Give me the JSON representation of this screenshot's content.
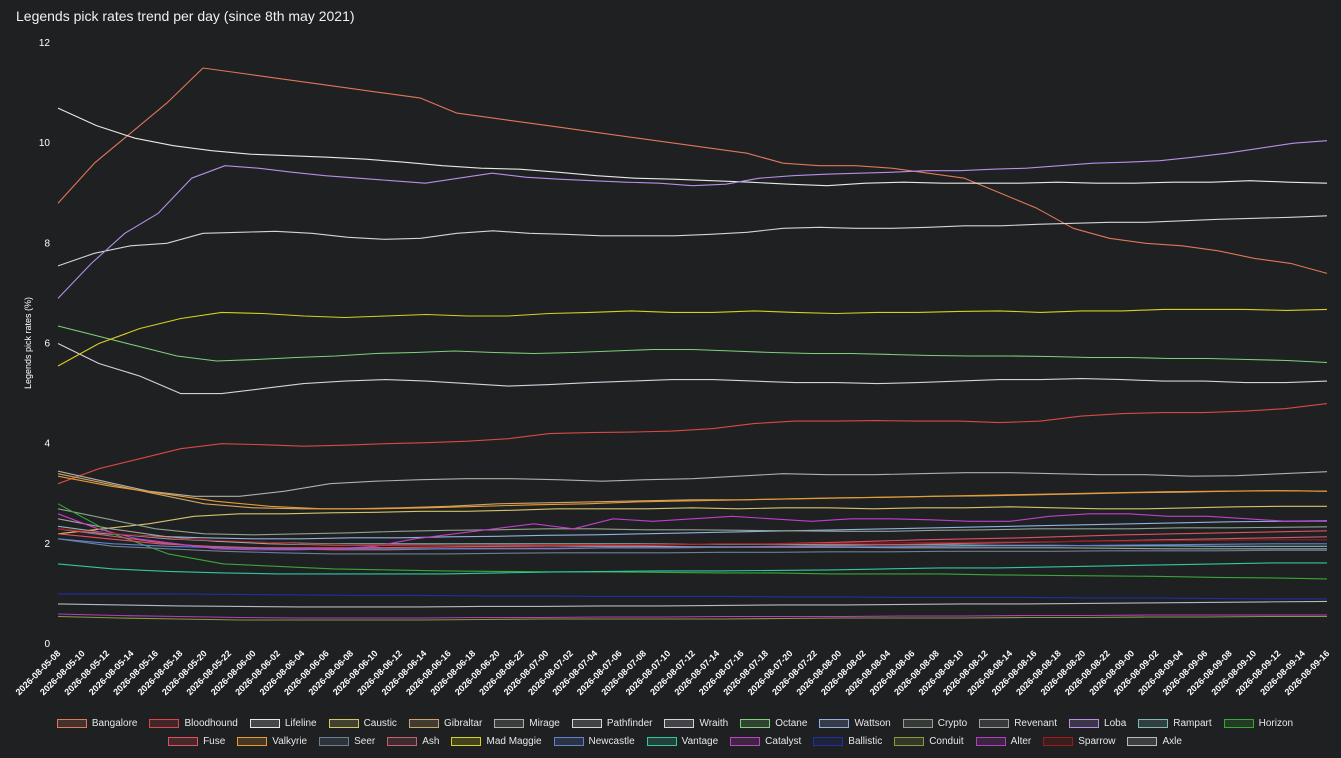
{
  "chart_data": {
    "type": "line",
    "title": "Legends pick rates trend per day (since 8th may 2021)",
    "ylabel": "Legends pick rates (%)",
    "xlabel": "",
    "ylim": [
      0,
      12
    ],
    "yticks": [
      0,
      2,
      4,
      6,
      8,
      10,
      12
    ],
    "grid": false,
    "legend_position": "bottom",
    "x_ticks": [
      "2026-08-05-08",
      "2026-08-05-10",
      "2026-08-05-12",
      "2026-08-05-14",
      "2026-08-05-16",
      "2026-08-05-18",
      "2026-08-05-20",
      "2026-08-05-22",
      "2026-08-06-00",
      "2026-08-06-02",
      "2026-08-06-04",
      "2026-08-06-06",
      "2026-08-06-08",
      "2026-08-06-10",
      "2026-08-06-12",
      "2026-08-06-14",
      "2026-08-06-16",
      "2026-08-06-18",
      "2026-08-06-20",
      "2026-08-06-22",
      "2026-08-07-00",
      "2026-08-07-02",
      "2026-08-07-04",
      "2026-08-07-06",
      "2026-08-07-08",
      "2026-08-07-10",
      "2026-08-07-12",
      "2026-08-07-14",
      "2026-08-07-16",
      "2026-08-07-18",
      "2026-08-07-20",
      "2026-08-07-22",
      "2026-08-08-00",
      "2026-08-08-02",
      "2026-08-08-04",
      "2026-08-08-06",
      "2026-08-08-08",
      "2026-08-08-10",
      "2026-08-08-12",
      "2026-08-08-14",
      "2026-08-08-16",
      "2026-08-08-18",
      "2026-08-08-20",
      "2026-08-08-22",
      "2026-08-09-00",
      "2026-08-09-02",
      "2026-08-09-04",
      "2026-08-09-06",
      "2026-08-09-08",
      "2026-08-09-10",
      "2026-08-09-12",
      "2026-08-09-14",
      "2026-08-09-16"
    ],
    "series": [
      {
        "name": "Bangalore",
        "color": "#e0765a",
        "values": [
          8.8,
          9.6,
          10.2,
          10.8,
          11.5,
          11.4,
          11.3,
          11.2,
          11.1,
          11.0,
          10.9,
          10.6,
          10.5,
          10.4,
          10.3,
          10.2,
          10.1,
          10.0,
          9.9,
          9.8,
          9.6,
          9.55,
          9.55,
          9.5,
          9.4,
          9.3,
          9.0,
          8.7,
          8.3,
          8.1,
          8.0,
          7.95,
          7.85,
          7.7,
          7.6,
          7.4
        ]
      },
      {
        "name": "Bloodhound",
        "color": "#d94848",
        "values": [
          3.2,
          3.5,
          3.7,
          3.9,
          4.0,
          3.98,
          3.95,
          3.97,
          4.0,
          4.02,
          4.05,
          4.1,
          4.2,
          4.22,
          4.23,
          4.25,
          4.3,
          4.4,
          4.45,
          4.45,
          4.46,
          4.45,
          4.45,
          4.42,
          4.45,
          4.55,
          4.6,
          4.62,
          4.62,
          4.65,
          4.7,
          4.8
        ]
      },
      {
        "name": "Lifeline",
        "color": "#e8e8e8",
        "values": [
          10.7,
          10.35,
          10.1,
          9.95,
          9.85,
          9.78,
          9.75,
          9.72,
          9.68,
          9.62,
          9.55,
          9.5,
          9.48,
          9.42,
          9.35,
          9.3,
          9.28,
          9.25,
          9.22,
          9.18,
          9.15,
          9.2,
          9.22,
          9.2,
          9.2,
          9.2,
          9.22,
          9.2,
          9.2,
          9.22,
          9.22,
          9.25,
          9.22,
          9.2
        ]
      },
      {
        "name": "Caustic",
        "color": "#d4c36a",
        "values": [
          2.2,
          2.3,
          2.4,
          2.55,
          2.6,
          2.6,
          2.62,
          2.63,
          2.65,
          2.65,
          2.67,
          2.7,
          2.7,
          2.7,
          2.72,
          2.7,
          2.72,
          2.72,
          2.7,
          2.72,
          2.72,
          2.74,
          2.72,
          2.7,
          2.7,
          2.72,
          2.74,
          2.75,
          2.75
        ]
      },
      {
        "name": "Gibraltar",
        "color": "#c8a56a",
        "values": [
          3.4,
          3.2,
          3.0,
          2.8,
          2.72,
          2.7,
          2.7,
          2.72,
          2.75,
          2.8,
          2.82,
          2.84,
          2.86,
          2.88,
          2.88,
          2.9,
          2.92,
          2.93,
          2.95,
          2.96,
          2.98,
          3.0,
          3.02,
          3.03,
          3.05,
          3.06,
          3.05
        ]
      },
      {
        "name": "Mirage",
        "color": "#b0b0a8",
        "values": [
          3.45,
          3.25,
          3.05,
          2.95,
          2.95,
          3.05,
          3.2,
          3.25,
          3.28,
          3.3,
          3.3,
          3.28,
          3.25,
          3.28,
          3.3,
          3.35,
          3.4,
          3.38,
          3.38,
          3.4,
          3.42,
          3.42,
          3.4,
          3.38,
          3.38,
          3.35,
          3.36,
          3.4,
          3.44
        ]
      },
      {
        "name": "Pathfinder",
        "color": "#cfd6dc",
        "values": [
          7.55,
          7.8,
          7.95,
          8.0,
          8.2,
          8.22,
          8.24,
          8.2,
          8.12,
          8.08,
          8.1,
          8.2,
          8.25,
          8.2,
          8.18,
          8.15,
          8.15,
          8.15,
          8.18,
          8.22,
          8.3,
          8.32,
          8.3,
          8.3,
          8.32,
          8.35,
          8.35,
          8.38,
          8.4,
          8.42,
          8.42,
          8.45,
          8.48,
          8.5,
          8.52,
          8.55
        ]
      },
      {
        "name": "Wraith",
        "color": "#d6d0e0",
        "values": [
          6.0,
          5.6,
          5.35,
          5.0,
          5.0,
          5.1,
          5.2,
          5.25,
          5.28,
          5.25,
          5.2,
          5.15,
          5.18,
          5.22,
          5.25,
          5.28,
          5.28,
          5.25,
          5.22,
          5.22,
          5.2,
          5.22,
          5.25,
          5.28,
          5.28,
          5.3,
          5.28,
          5.25,
          5.25,
          5.22,
          5.22,
          5.25
        ]
      },
      {
        "name": "Octane",
        "color": "#7fcf7f",
        "values": [
          6.35,
          6.15,
          5.95,
          5.75,
          5.65,
          5.68,
          5.72,
          5.75,
          5.8,
          5.82,
          5.85,
          5.82,
          5.8,
          5.82,
          5.85,
          5.88,
          5.88,
          5.85,
          5.82,
          5.8,
          5.8,
          5.78,
          5.76,
          5.75,
          5.75,
          5.74,
          5.72,
          5.72,
          5.7,
          5.7,
          5.68,
          5.66,
          5.62
        ]
      },
      {
        "name": "Wattson",
        "color": "#8fb0e0",
        "values": [
          2.3,
          2.2,
          2.15,
          2.12,
          2.1,
          2.1,
          2.12,
          2.12,
          2.14,
          2.15,
          2.17,
          2.18,
          2.2,
          2.22,
          2.24,
          2.26,
          2.28,
          2.3,
          2.32,
          2.34,
          2.36,
          2.38,
          2.4,
          2.42,
          2.44,
          2.45,
          2.46
        ]
      },
      {
        "name": "Crypto",
        "color": "#8fa08f",
        "values": [
          2.7,
          2.5,
          2.3,
          2.2,
          2.18,
          2.2,
          2.22,
          2.25,
          2.27,
          2.28,
          2.3,
          2.3,
          2.28,
          2.28,
          2.27,
          2.26,
          2.25,
          2.25,
          2.27,
          2.28,
          2.3,
          2.3,
          2.3,
          2.32,
          2.32,
          2.33,
          2.34
        ]
      },
      {
        "name": "Revenant",
        "color": "#a0a0a0",
        "values": [
          2.5,
          2.3,
          2.15,
          2.05,
          2.0,
          1.98,
          1.97,
          1.97,
          1.96,
          1.96,
          1.95,
          1.95,
          1.94,
          1.94,
          1.93,
          1.93,
          1.92,
          1.92,
          1.92,
          1.92,
          1.91,
          1.9,
          1.9,
          1.9,
          1.9
        ]
      },
      {
        "name": "Loba",
        "color": "#b78ee8",
        "values": [
          6.9,
          7.6,
          8.2,
          8.6,
          9.3,
          9.55,
          9.5,
          9.42,
          9.35,
          9.3,
          9.25,
          9.2,
          9.3,
          9.4,
          9.32,
          9.28,
          9.25,
          9.22,
          9.2,
          9.15,
          9.18,
          9.3,
          9.35,
          9.38,
          9.4,
          9.42,
          9.45,
          9.45,
          9.48,
          9.5,
          9.55,
          9.6,
          9.62,
          9.65,
          9.72,
          9.8,
          9.9,
          10.0,
          10.05
        ]
      },
      {
        "name": "Rampart",
        "color": "#7fb8b8",
        "values": [
          2.35,
          2.2,
          2.1,
          2.05,
          2.02,
          2.0,
          2.0,
          2.0,
          2.0,
          2.0,
          2.0,
          2.0,
          1.99,
          1.99,
          1.98,
          1.98,
          1.98,
          1.97,
          1.97,
          1.96,
          1.96,
          1.95,
          1.95,
          1.95
        ]
      },
      {
        "name": "Horizon",
        "color": "#37a837",
        "values": [
          2.8,
          2.2,
          1.8,
          1.6,
          1.55,
          1.5,
          1.48,
          1.46,
          1.45,
          1.44,
          1.44,
          1.43,
          1.42,
          1.42,
          1.4,
          1.4,
          1.4,
          1.38,
          1.37,
          1.36,
          1.35,
          1.33,
          1.32,
          1.3
        ]
      },
      {
        "name": "Fuse",
        "color": "#e05060",
        "values": [
          2.2,
          2.1,
          2.0,
          1.95,
          1.92,
          1.92,
          1.92,
          1.93,
          1.94,
          1.95,
          1.96,
          1.97,
          1.98,
          2.0,
          2.0,
          2.02,
          2.05,
          2.08,
          2.1,
          2.12,
          2.15,
          2.18,
          2.2,
          2.22,
          2.24,
          2.26
        ]
      },
      {
        "name": "Valkyrie",
        "color": "#e89a30",
        "values": [
          3.35,
          3.15,
          3.0,
          2.85,
          2.75,
          2.7,
          2.7,
          2.72,
          2.75,
          2.78,
          2.8,
          2.84,
          2.86,
          2.88,
          2.9,
          2.92,
          2.94,
          2.96,
          2.98,
          3.0,
          3.02,
          3.04,
          3.05,
          3.06,
          3.05
        ]
      },
      {
        "name": "Seer",
        "color": "#6a8098",
        "values": [
          2.1,
          1.95,
          1.9,
          1.85,
          1.82,
          1.8,
          1.8,
          1.8,
          1.81,
          1.82,
          1.82,
          1.82,
          1.83,
          1.83,
          1.84,
          1.84,
          1.85,
          1.85,
          1.85,
          1.86,
          1.86,
          1.86,
          1.87,
          1.87
        ]
      },
      {
        "name": "Ash",
        "color": "#c06070",
        "values": [
          2.3,
          2.15,
          2.0,
          1.92,
          1.9,
          1.88,
          1.88,
          1.9,
          1.9,
          1.9,
          1.92,
          1.92,
          1.93,
          1.95,
          1.96,
          1.98,
          2.0,
          2.02,
          2.04,
          2.06,
          2.08,
          2.1,
          2.12,
          2.14
        ]
      },
      {
        "name": "Mad Maggie",
        "color": "#d8d020",
        "values": [
          5.55,
          6.0,
          6.3,
          6.5,
          6.62,
          6.6,
          6.55,
          6.52,
          6.55,
          6.58,
          6.55,
          6.55,
          6.6,
          6.62,
          6.65,
          6.62,
          6.62,
          6.65,
          6.62,
          6.6,
          6.62,
          6.62,
          6.64,
          6.65,
          6.62,
          6.65,
          6.65,
          6.68,
          6.68,
          6.68,
          6.66,
          6.68
        ]
      },
      {
        "name": "Newcastle",
        "color": "#6080d0",
        "values": [
          2.1,
          2.0,
          1.95,
          1.92,
          1.9,
          1.9,
          1.9,
          1.9,
          1.91,
          1.91,
          1.92,
          1.92,
          1.93,
          1.93,
          1.94,
          1.94,
          1.95,
          1.96,
          1.96,
          1.97,
          1.98,
          1.99,
          2.0,
          2.0
        ]
      },
      {
        "name": "Vantage",
        "color": "#30c8a0",
        "values": [
          1.6,
          1.5,
          1.45,
          1.42,
          1.4,
          1.4,
          1.4,
          1.4,
          1.42,
          1.44,
          1.45,
          1.46,
          1.46,
          1.47,
          1.48,
          1.5,
          1.52,
          1.52,
          1.54,
          1.56,
          1.58,
          1.6,
          1.62,
          1.62
        ]
      },
      {
        "name": "Catalyst",
        "color": "#c040c8",
        "values": [
          2.6,
          2.3,
          2.1,
          2.0,
          1.9,
          1.88,
          1.88,
          1.9,
          1.95,
          2.1,
          2.2,
          2.3,
          2.4,
          2.3,
          2.5,
          2.45,
          2.5,
          2.55,
          2.5,
          2.45,
          2.5,
          2.5,
          2.48,
          2.45,
          2.45,
          2.55,
          2.6,
          2.6,
          2.55,
          2.55,
          2.5,
          2.45,
          2.45
        ]
      },
      {
        "name": "Ballistic",
        "color": "#2030a0",
        "values": [
          1.0,
          1.0,
          1.0,
          0.99,
          0.98,
          0.97,
          0.97,
          0.96,
          0.96,
          0.95,
          0.95,
          0.95,
          0.94,
          0.94,
          0.93,
          0.93,
          0.93,
          0.92,
          0.92,
          0.91,
          0.9,
          0.9
        ]
      },
      {
        "name": "Conduit",
        "color": "#8a9a40",
        "values": [
          0.55,
          0.52,
          0.5,
          0.48,
          0.48,
          0.48,
          0.48,
          0.49,
          0.5,
          0.5,
          0.5,
          0.5,
          0.51,
          0.52,
          0.52,
          0.52,
          0.53,
          0.53,
          0.54,
          0.54,
          0.55,
          0.55
        ]
      },
      {
        "name": "Alter",
        "color": "#b040c0",
        "values": [
          0.6,
          0.57,
          0.55,
          0.53,
          0.52,
          0.52,
          0.52,
          0.53,
          0.53,
          0.54,
          0.54,
          0.55,
          0.55,
          0.55,
          0.56,
          0.56,
          0.57,
          0.57,
          0.58,
          0.58,
          0.58,
          0.58
        ]
      },
      {
        "name": "Sparrow",
        "color": "#a01818",
        "values": [
          2.3,
          2.2,
          2.1,
          2.05,
          2.0,
          1.98,
          1.97,
          1.97,
          1.98,
          1.98,
          1.99,
          2.0,
          2.0,
          2.01,
          2.02,
          2.03,
          2.04,
          2.05,
          2.06,
          2.07,
          2.08,
          2.08
        ]
      },
      {
        "name": "Axle",
        "color": "#b8b8c0",
        "values": [
          0.8,
          0.78,
          0.76,
          0.75,
          0.74,
          0.74,
          0.74,
          0.75,
          0.75,
          0.76,
          0.76,
          0.77,
          0.78,
          0.78,
          0.79,
          0.8,
          0.8,
          0.81,
          0.82,
          0.83,
          0.84,
          0.85
        ]
      }
    ]
  }
}
